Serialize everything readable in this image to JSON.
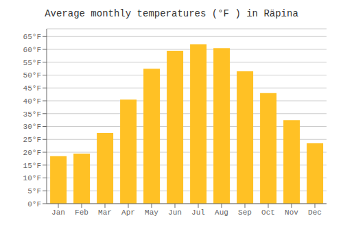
{
  "chart_data": {
    "type": "bar",
    "title": "Average monthly temperatures (°F ) in Räpina",
    "categories": [
      "Jan",
      "Feb",
      "Mar",
      "Apr",
      "May",
      "Jun",
      "Jul",
      "Aug",
      "Sep",
      "Oct",
      "Nov",
      "Dec"
    ],
    "values": [
      18.5,
      19.5,
      27.5,
      40.5,
      52.5,
      59.5,
      62.0,
      60.5,
      51.5,
      43.0,
      32.5,
      23.5
    ],
    "color": "#FFC125",
    "ylim": [
      0,
      68
    ],
    "yticks": [
      {
        "value": 0,
        "label": "0°F"
      },
      {
        "value": 5,
        "label": "5°F"
      },
      {
        "value": 10,
        "label": "10°F"
      },
      {
        "value": 15,
        "label": "15°F"
      },
      {
        "value": 20,
        "label": "20°F"
      },
      {
        "value": 25,
        "label": "25°F"
      },
      {
        "value": 30,
        "label": "30°F"
      },
      {
        "value": 35,
        "label": "35°F"
      },
      {
        "value": 40,
        "label": "40°F"
      },
      {
        "value": 45,
        "label": "45°F"
      },
      {
        "value": 50,
        "label": "50°F"
      },
      {
        "value": 55,
        "label": "55°F"
      },
      {
        "value": 60,
        "label": "60°F"
      },
      {
        "value": 65,
        "label": "65°F"
      }
    ],
    "grid": true
  }
}
